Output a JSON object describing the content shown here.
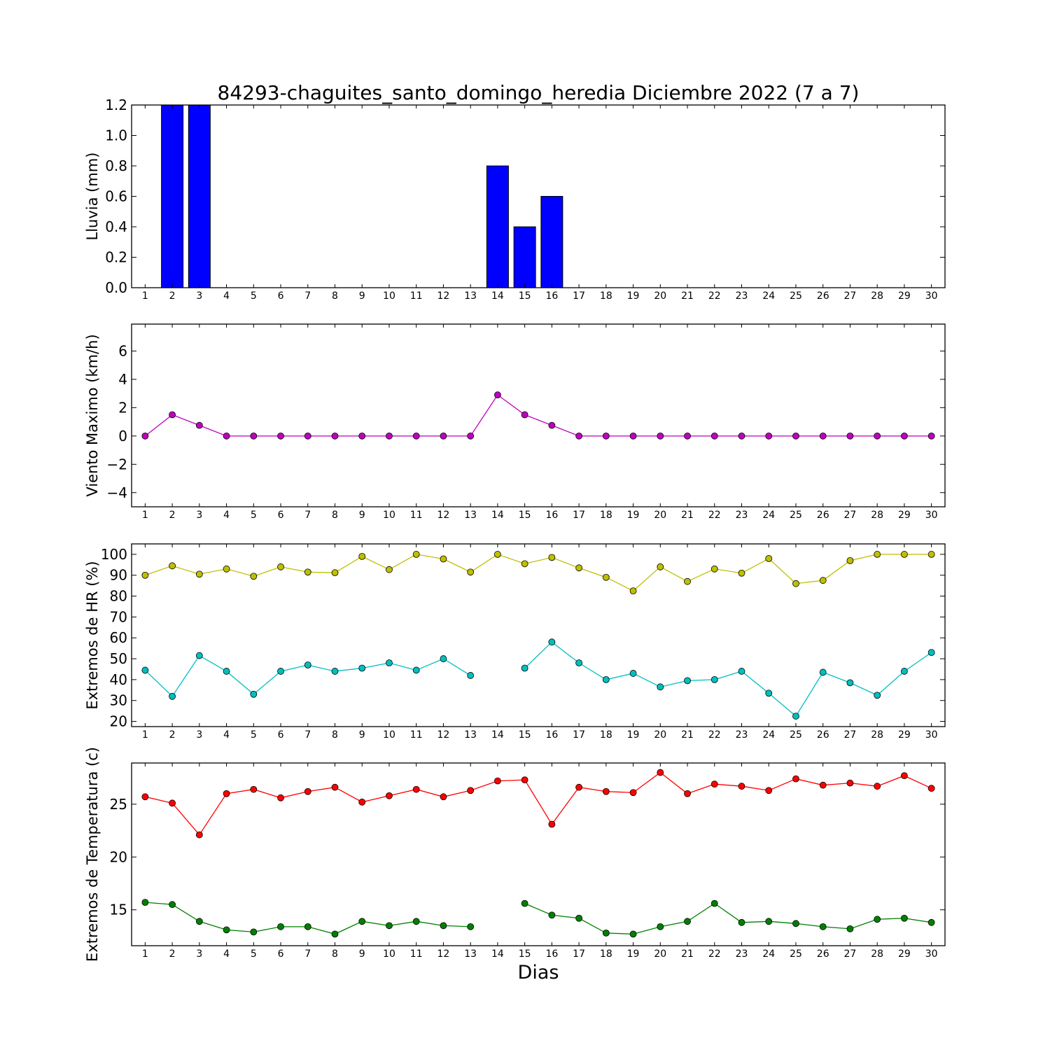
{
  "figure": {
    "title": "84293-chaguites_santo_domingo_heredia Diciembre 2022  (7 a 7)",
    "xlabel": "Dias"
  },
  "chart_data": [
    {
      "type": "bar",
      "ylabel": "Lluvia (mm)",
      "x": [
        1,
        2,
        3,
        4,
        5,
        6,
        7,
        8,
        9,
        10,
        11,
        12,
        13,
        14,
        15,
        16,
        17,
        18,
        19,
        20,
        21,
        22,
        23,
        24,
        25,
        26,
        27,
        28,
        29,
        30
      ],
      "values": [
        0,
        1.2,
        1.2,
        0,
        0,
        0,
        0,
        0,
        0,
        0,
        0,
        0,
        0,
        0.8,
        0.4,
        0.6,
        0,
        0,
        0,
        0,
        0,
        0,
        0,
        0,
        0,
        0,
        0,
        0,
        0,
        0
      ],
      "ylim": [
        0,
        1.2
      ],
      "yticks": [
        0.0,
        0.2,
        0.4,
        0.6,
        0.8,
        1.0,
        1.2
      ],
      "ytick_labels": [
        "0.0",
        "0.2",
        "0.4",
        "0.6",
        "0.8",
        "1.0",
        "1.2"
      ],
      "xlim": [
        0.5,
        30.5
      ],
      "color": "#0000ff"
    },
    {
      "type": "line",
      "ylabel": "Viento Maximo (km/h)",
      "x": [
        1,
        2,
        3,
        4,
        5,
        6,
        7,
        8,
        9,
        10,
        11,
        12,
        13,
        14,
        15,
        16,
        17,
        18,
        19,
        20,
        21,
        22,
        23,
        24,
        25,
        26,
        27,
        28,
        29,
        30
      ],
      "series": [
        {
          "color": "#bf00bf",
          "values": [
            0,
            1.5,
            0.75,
            0,
            0,
            0,
            0,
            0,
            0,
            0,
            0,
            0,
            0,
            2.9,
            1.5,
            0.75,
            0,
            0,
            0,
            0,
            0,
            0,
            0,
            0,
            0,
            0,
            0,
            0,
            0,
            0
          ]
        }
      ],
      "ylim": [
        -5,
        7.9
      ],
      "yticks": [
        -4,
        -2,
        0,
        2,
        4,
        6
      ],
      "ytick_labels": [
        "−4",
        "−2",
        "0",
        "2",
        "4",
        "6"
      ],
      "xlim": [
        0.5,
        30.5
      ]
    },
    {
      "type": "line",
      "ylabel": "Extremos de HR (%)",
      "x": [
        1,
        2,
        3,
        4,
        5,
        6,
        7,
        8,
        9,
        10,
        11,
        12,
        13,
        14,
        15,
        16,
        17,
        18,
        19,
        20,
        21,
        22,
        23,
        24,
        25,
        26,
        27,
        28,
        29,
        30
      ],
      "series": [
        {
          "color": "#bfbf00",
          "values": [
            90,
            94.5,
            90.5,
            93,
            89.5,
            94,
            91.5,
            91.2,
            99,
            92.7,
            100,
            97.8,
            91.5,
            100,
            95.5,
            98.5,
            93.5,
            89,
            82.5,
            94,
            87,
            93,
            91,
            98,
            86,
            87.5,
            97,
            100,
            100,
            100
          ]
        },
        {
          "color": "#00bfbf",
          "values": [
            44.5,
            32,
            51.5,
            44,
            33,
            44,
            47,
            44,
            45.5,
            48,
            44.5,
            50,
            42,
            null,
            45.5,
            58,
            48,
            40,
            43,
            36.5,
            39.5,
            40,
            44,
            33.5,
            22.5,
            43.5,
            38.5,
            32.5,
            44,
            53
          ]
        }
      ],
      "ylim": [
        17.5,
        105
      ],
      "yticks": [
        20,
        30,
        40,
        50,
        60,
        70,
        80,
        90,
        100
      ],
      "ytick_labels": [
        "20",
        "30",
        "40",
        "50",
        "60",
        "70",
        "80",
        "90",
        "100"
      ],
      "xlim": [
        0.5,
        30.5
      ]
    },
    {
      "type": "line",
      "ylabel": "Extremos de Temperatura (c)",
      "x": [
        1,
        2,
        3,
        4,
        5,
        6,
        7,
        8,
        9,
        10,
        11,
        12,
        13,
        14,
        15,
        16,
        17,
        18,
        19,
        20,
        21,
        22,
        23,
        24,
        25,
        26,
        27,
        28,
        29,
        30
      ],
      "series": [
        {
          "color": "#ff0000",
          "values": [
            25.7,
            25.1,
            22.1,
            26,
            26.4,
            25.6,
            26.2,
            26.6,
            25.2,
            25.8,
            26.4,
            25.7,
            26.3,
            27.2,
            27.3,
            23.1,
            26.6,
            26.2,
            26.1,
            28,
            26,
            26.9,
            26.7,
            26.3,
            27.4,
            26.8,
            27,
            26.7,
            27.7,
            26.5
          ]
        },
        {
          "color": "#008000",
          "values": [
            15.7,
            15.5,
            13.9,
            13.1,
            12.9,
            13.4,
            13.4,
            12.7,
            13.9,
            13.5,
            13.9,
            13.5,
            13.4,
            null,
            15.6,
            14.5,
            14.2,
            12.8,
            12.7,
            13.4,
            13.9,
            15.6,
            13.8,
            13.9,
            13.7,
            13.4,
            13.2,
            14.1,
            14.2,
            13.8
          ]
        }
      ],
      "ylim": [
        11.6,
        28.9
      ],
      "yticks": [
        15,
        20,
        25
      ],
      "ytick_labels": [
        "15",
        "20",
        "25"
      ],
      "xlim": [
        0.5,
        30.5
      ]
    }
  ]
}
